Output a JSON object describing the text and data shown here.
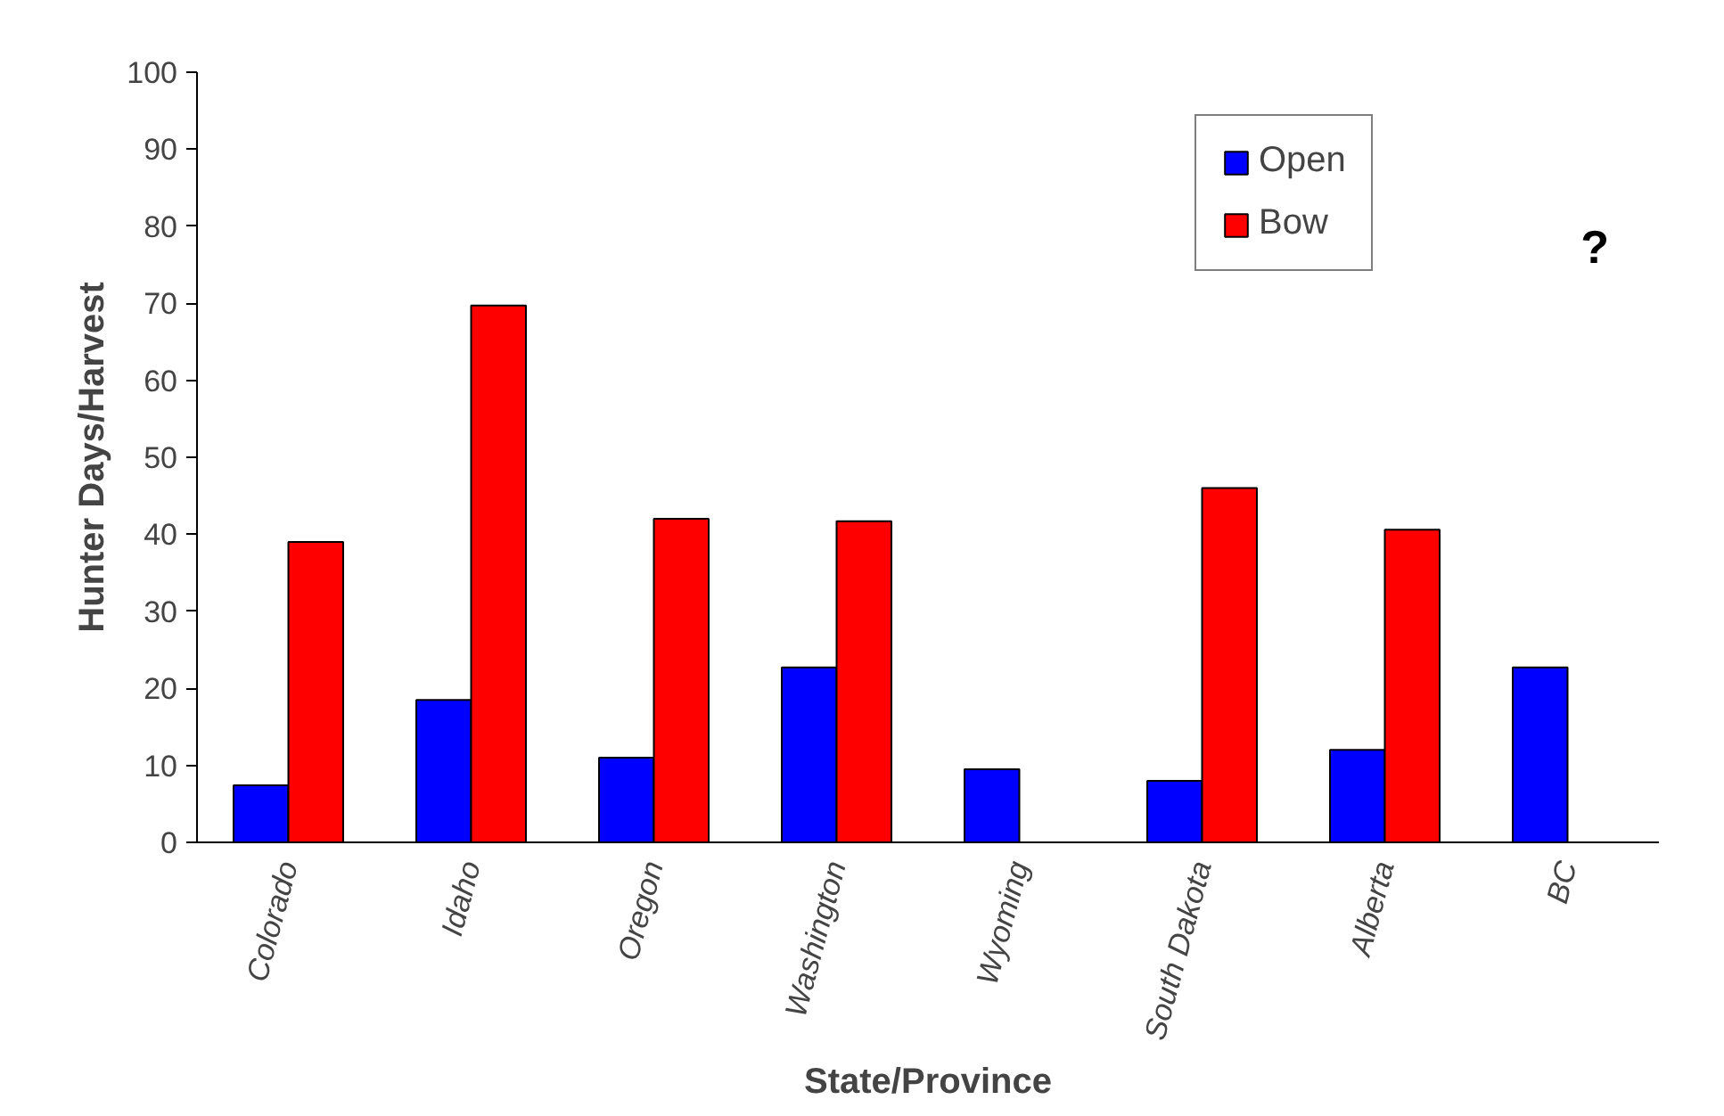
{
  "chart_data": {
    "type": "bar",
    "xlabel": "State/Province",
    "ylabel": "Hunter Days/Harvest",
    "categories": [
      "Colorado",
      "Idaho",
      "Oregon",
      "Washington",
      "Wyoming",
      "South Dakota",
      "Alberta",
      "BC"
    ],
    "series": [
      {
        "name": "Open",
        "color": "#0000ff",
        "values": [
          7.4,
          18.5,
          11,
          22.7,
          9.5,
          8,
          12,
          22.7
        ]
      },
      {
        "name": "Bow",
        "color": "#ff0000",
        "values": [
          39,
          69.7,
          42,
          41.7,
          null,
          46,
          40.6,
          null
        ]
      }
    ],
    "ylim": [
      0,
      100
    ],
    "yticks": [
      0,
      10,
      20,
      30,
      40,
      50,
      60,
      70,
      80,
      90,
      100
    ],
    "annotations": [
      "?"
    ],
    "grid": false,
    "legend": "top right"
  }
}
